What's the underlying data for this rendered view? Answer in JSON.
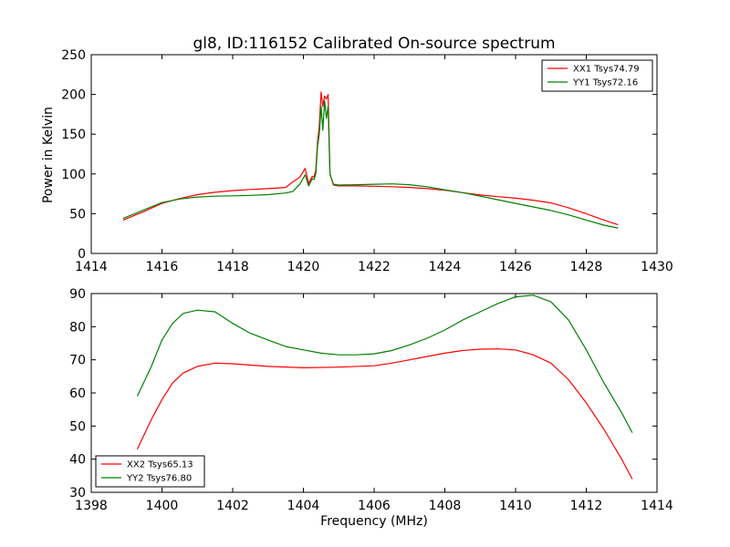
{
  "chart_data": [
    {
      "type": "line",
      "title": "gl8, ID:116152 Calibrated On-source spectrum",
      "xlabel": "",
      "ylabel": "Power in Kelvin",
      "xlim": [
        1414,
        1430
      ],
      "ylim": [
        0,
        250
      ],
      "xticks": [
        "1414",
        "1416",
        "1418",
        "1420",
        "1422",
        "1424",
        "1426",
        "1428",
        "1430"
      ],
      "yticks": [
        "0",
        "50",
        "100",
        "150",
        "200",
        "250"
      ],
      "grid": false,
      "legend_position": "top-right",
      "series": [
        {
          "name": "XX1 Tsys74.79",
          "color": "#ff0000",
          "x": [
            1414.9,
            1415.5,
            1416.0,
            1416.5,
            1417.0,
            1417.5,
            1418.0,
            1418.5,
            1419.0,
            1419.5,
            1419.7,
            1419.9,
            1420.05,
            1420.15,
            1420.25,
            1420.3,
            1420.35,
            1420.4,
            1420.45,
            1420.5,
            1420.55,
            1420.6,
            1420.65,
            1420.7,
            1420.75,
            1420.85,
            1421.0,
            1421.5,
            1422.0,
            1422.5,
            1423.0,
            1423.5,
            1424.0,
            1424.5,
            1425.0,
            1425.5,
            1426.0,
            1426.5,
            1427.0,
            1427.5,
            1428.0,
            1428.5,
            1428.9
          ],
          "y": [
            42,
            53,
            63,
            69,
            74,
            77,
            79,
            80.5,
            81.5,
            83,
            90,
            96,
            107,
            88,
            97,
            96,
            105,
            140,
            160,
            203,
            185,
            198,
            194,
            200,
            100,
            86,
            85,
            85,
            84.5,
            84,
            83,
            81.5,
            79.5,
            76.5,
            73.5,
            71.5,
            69.5,
            67,
            63.5,
            57.5,
            50,
            42,
            36
          ]
        },
        {
          "name": "YY1 Tsys72.16",
          "color": "#008000",
          "x": [
            1414.9,
            1415.5,
            1416.0,
            1416.5,
            1417.0,
            1417.5,
            1418.0,
            1418.5,
            1419.0,
            1419.5,
            1419.7,
            1419.9,
            1420.05,
            1420.15,
            1420.25,
            1420.3,
            1420.35,
            1420.4,
            1420.45,
            1420.5,
            1420.55,
            1420.6,
            1420.65,
            1420.7,
            1420.75,
            1420.85,
            1421.0,
            1421.5,
            1422.0,
            1422.5,
            1423.0,
            1423.5,
            1424.0,
            1424.5,
            1425.0,
            1425.5,
            1426.0,
            1426.5,
            1427.0,
            1427.5,
            1428.0,
            1428.5,
            1428.9
          ],
          "y": [
            44,
            55,
            64,
            68.5,
            71,
            72,
            72.5,
            73,
            74,
            76,
            78,
            87,
            99,
            85,
            94,
            93,
            100,
            135,
            150,
            185,
            155,
            192,
            170,
            185,
            100,
            87,
            86,
            86.5,
            87,
            87.5,
            86.5,
            84,
            80,
            76.5,
            72,
            67.5,
            63,
            58.5,
            54,
            48.5,
            42,
            35.5,
            32
          ]
        }
      ]
    },
    {
      "type": "line",
      "title": "",
      "xlabel": "Frequency (MHz)",
      "ylabel": "",
      "xlim": [
        1398,
        1414
      ],
      "ylim": [
        30,
        90
      ],
      "xticks": [
        "1398",
        "1400",
        "1402",
        "1404",
        "1406",
        "1408",
        "1410",
        "1412",
        "1414"
      ],
      "yticks": [
        "30",
        "40",
        "50",
        "60",
        "70",
        "80",
        "90"
      ],
      "grid": false,
      "legend_position": "bottom-left",
      "series": [
        {
          "name": "XX2 Tsys65.13",
          "color": "#ff0000",
          "x": [
            1399.3,
            1399.7,
            1400.0,
            1400.3,
            1400.6,
            1401.0,
            1401.5,
            1402.0,
            1403.0,
            1404.0,
            1405.0,
            1406.0,
            1406.5,
            1407.0,
            1407.5,
            1408.0,
            1408.5,
            1409.0,
            1409.5,
            1410.0,
            1410.5,
            1411.0,
            1411.5,
            1412.0,
            1412.5,
            1413.0,
            1413.3
          ],
          "y": [
            43,
            52,
            58,
            63,
            66,
            68,
            69,
            68.8,
            68,
            67.6,
            67.8,
            68.2,
            69,
            70,
            71,
            72,
            72.8,
            73.2,
            73.3,
            73,
            71.5,
            69,
            64,
            57,
            49,
            40,
            34
          ]
        },
        {
          "name": "YY2 Tsys76.80",
          "color": "#008000",
          "x": [
            1399.3,
            1399.7,
            1400.0,
            1400.3,
            1400.6,
            1401.0,
            1401.5,
            1402.0,
            1402.5,
            1403.0,
            1403.5,
            1404.0,
            1404.5,
            1405.0,
            1405.5,
            1406.0,
            1406.5,
            1407.0,
            1407.5,
            1408.0,
            1408.5,
            1409.0,
            1409.5,
            1410.0,
            1410.5,
            1411.0,
            1411.5,
            1412.0,
            1412.5,
            1413.0,
            1413.3
          ],
          "y": [
            59,
            68,
            76,
            81,
            84,
            85,
            84.5,
            81,
            78,
            76,
            74,
            73,
            72,
            71.5,
            71.5,
            71.8,
            72.8,
            74.5,
            76.5,
            79,
            82,
            84.5,
            87,
            89,
            89.5,
            87.5,
            82,
            73,
            63,
            54,
            48
          ]
        }
      ]
    }
  ]
}
